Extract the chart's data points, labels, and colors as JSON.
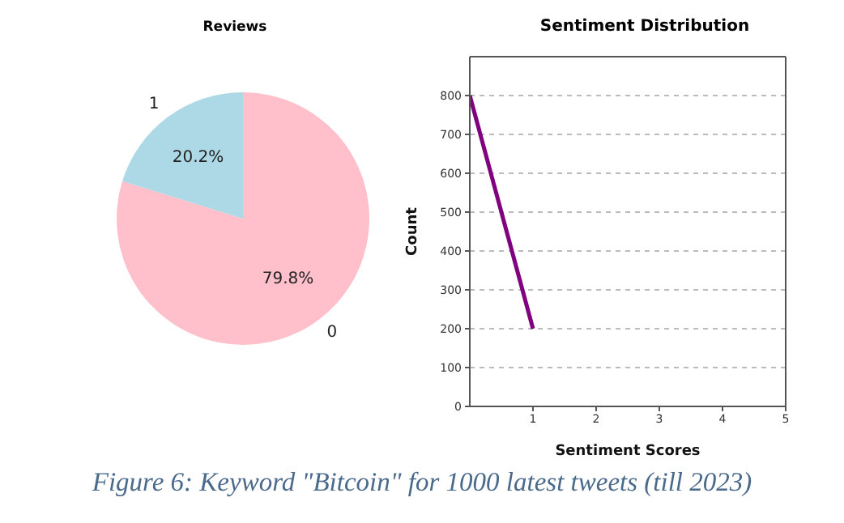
{
  "chart_data": [
    {
      "type": "pie",
      "title": "Reviews",
      "categories": [
        "0",
        "1"
      ],
      "values": [
        79.8,
        20.2
      ],
      "colors": [
        "#ffc0cb",
        "#add8e6"
      ],
      "value_labels": [
        "79.8%",
        "20.2%"
      ]
    },
    {
      "type": "line",
      "title": "Sentiment Distribution",
      "xlabel": "Sentiment Scores",
      "ylabel": "Count",
      "x": [
        0,
        1
      ],
      "series": [
        {
          "color": "#800080",
          "values": [
            800,
            200
          ]
        }
      ],
      "xlim": [
        0,
        5
      ],
      "xticks": [
        1,
        2,
        3,
        4,
        5
      ],
      "ylim": [
        0,
        900
      ],
      "yticks": [
        0,
        100,
        200,
        300,
        400,
        500,
        600,
        700,
        800
      ],
      "grid": "y",
      "marker": "none",
      "line_style": "solid",
      "annotations": [
        "Figure 6: Keyword \"Bitcoin\" for 1000 latest tweets (till 2023)"
      ]
    }
  ]
}
